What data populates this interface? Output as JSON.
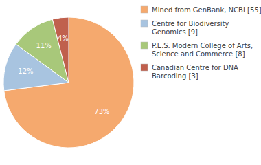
{
  "chart_data": {
    "type": "pie",
    "categories": [
      "Mined from GenBank, NCBI [55]",
      "Centre for Biodiversity\nGenomics [9]",
      "P.E.S. Modern College of Arts,\nScience and Commerce [8]",
      "Canadian Centre for DNA\nBarcoding [3]"
    ],
    "values": [
      73,
      12,
      11,
      4
    ],
    "colors": [
      "#F5A96E",
      "#A8C4E0",
      "#A8C87A",
      "#C0604D"
    ],
    "data_labels": true,
    "legend": "right"
  }
}
